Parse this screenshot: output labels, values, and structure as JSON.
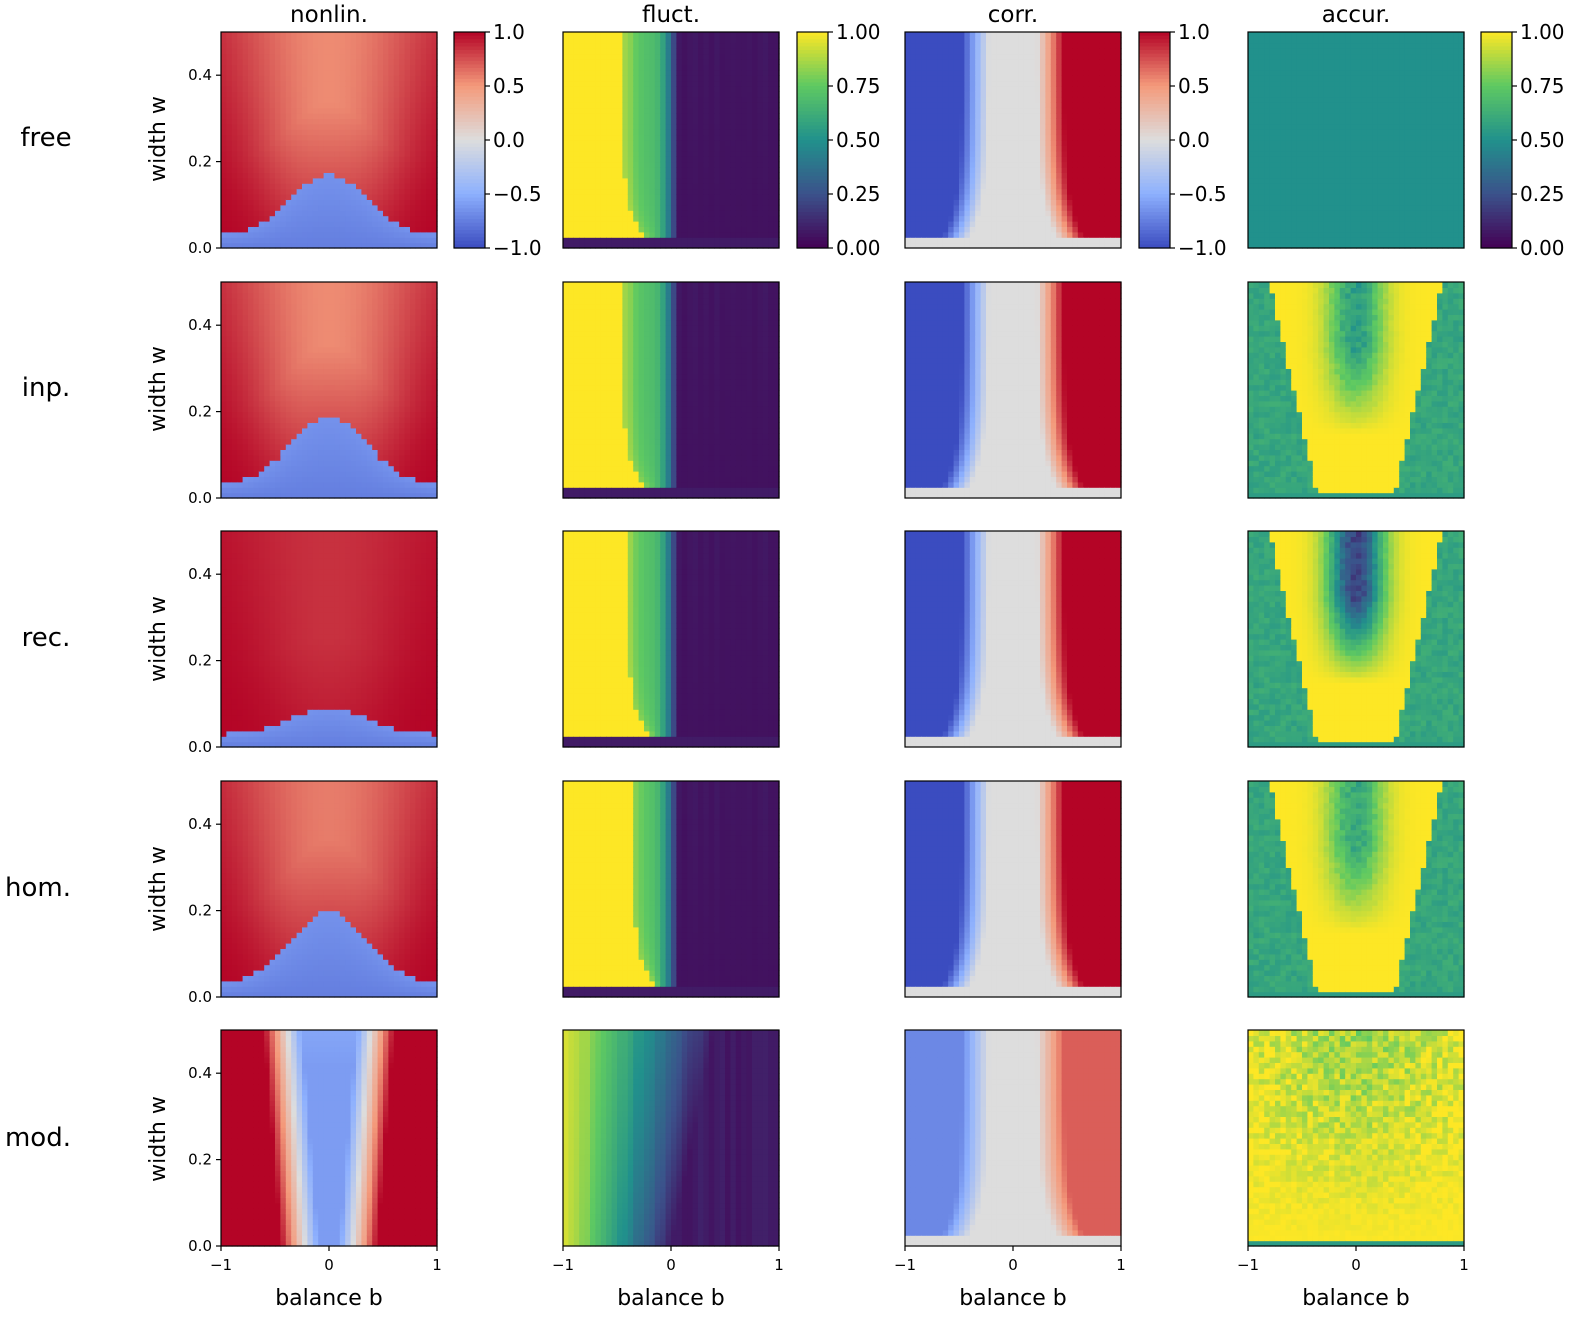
{
  "figure": {
    "column_titles": [
      "nonlin.",
      "fluct.",
      "corr.",
      "accur."
    ],
    "row_labels": [
      "free",
      "inp.",
      "rec.",
      "hom.",
      "mod."
    ],
    "xlabel": "balance b",
    "ylabel": "width w",
    "x_ticks": [
      "−1",
      "0",
      "1"
    ],
    "y_ticks": [
      "0.0",
      "0.2",
      "0.4"
    ],
    "colorbars": [
      {
        "column": "nonlin.",
        "colormap": "coolwarm",
        "range": [
          -1,
          1
        ],
        "ticks": [
          "1.0",
          "0.5",
          "0.0",
          "−0.5",
          "−1.0"
        ]
      },
      {
        "column": "fluct.",
        "colormap": "viridis",
        "range": [
          0,
          1
        ],
        "ticks": [
          "1.00",
          "0.75",
          "0.50",
          "0.25",
          "0.00"
        ]
      },
      {
        "column": "corr.",
        "colormap": "coolwarm",
        "range": [
          -1,
          1
        ],
        "ticks": [
          "1.0",
          "0.5",
          "0.0",
          "−0.5",
          "−1.0"
        ]
      },
      {
        "column": "accur.",
        "colormap": "viridis",
        "range": [
          0,
          1
        ],
        "ticks": [
          "1.00",
          "0.75",
          "0.50",
          "0.25",
          "0.00"
        ]
      }
    ]
  },
  "chart_data": {
    "type": "heatmap",
    "grid": "5 rows x 4 columns",
    "x_range": [
      -1,
      1
    ],
    "y_range": [
      0,
      0.5
    ],
    "color_nonlin": "#b40426",
    "color_low": "#3b4cc0",
    "color_viridis_high": "#fde725",
    "color_viridis_low": "#440154",
    "panels": [
      {
        "row": "free",
        "column": "nonlin.",
        "pattern": "nonlin",
        "boundary_at_b0": 0.17,
        "center_value": 0.55
      },
      {
        "row": "free",
        "column": "fluct.",
        "pattern": "fluct",
        "edge": 0.45
      },
      {
        "row": "free",
        "column": "corr.",
        "pattern": "corr",
        "strength": 1.0
      },
      {
        "row": "free",
        "column": "accur.",
        "pattern": "uniform",
        "value": 0.5
      },
      {
        "row": "inp.",
        "column": "nonlin.",
        "pattern": "nonlin",
        "boundary_at_b0": 0.19,
        "center_value": 0.55
      },
      {
        "row": "inp.",
        "column": "fluct.",
        "pattern": "fluct",
        "edge": 0.45
      },
      {
        "row": "inp.",
        "column": "corr.",
        "pattern": "corr",
        "strength": 1.0
      },
      {
        "row": "inp.",
        "column": "accur.",
        "pattern": "accur",
        "center_value": 0.55
      },
      {
        "row": "rec.",
        "column": "nonlin.",
        "pattern": "nonlin",
        "boundary_at_b0": 0.09,
        "center_value": 0.85
      },
      {
        "row": "rec.",
        "column": "fluct.",
        "pattern": "fluct",
        "edge": 0.4
      },
      {
        "row": "rec.",
        "column": "corr.",
        "pattern": "corr",
        "strength": 1.0
      },
      {
        "row": "rec.",
        "column": "accur.",
        "pattern": "accur",
        "center_value": 0.2
      },
      {
        "row": "hom.",
        "column": "nonlin.",
        "pattern": "nonlin",
        "boundary_at_b0": 0.2,
        "center_value": 0.6
      },
      {
        "row": "hom.",
        "column": "fluct.",
        "pattern": "fluct",
        "edge": 0.35
      },
      {
        "row": "hom.",
        "column": "corr.",
        "pattern": "corr",
        "strength": 1.0
      },
      {
        "row": "hom.",
        "column": "accur.",
        "pattern": "accur",
        "center_value": 0.6
      },
      {
        "row": "mod.",
        "column": "nonlin.",
        "pattern": "nonlin_mod",
        "center_value": -0.4
      },
      {
        "row": "mod.",
        "column": "fluct.",
        "pattern": "fluct_mod",
        "edge": 0.7
      },
      {
        "row": "mod.",
        "column": "corr.",
        "pattern": "corr",
        "strength": 0.7
      },
      {
        "row": "mod.",
        "column": "accur.",
        "pattern": "accur_mod",
        "center_value": 0.85
      }
    ]
  }
}
